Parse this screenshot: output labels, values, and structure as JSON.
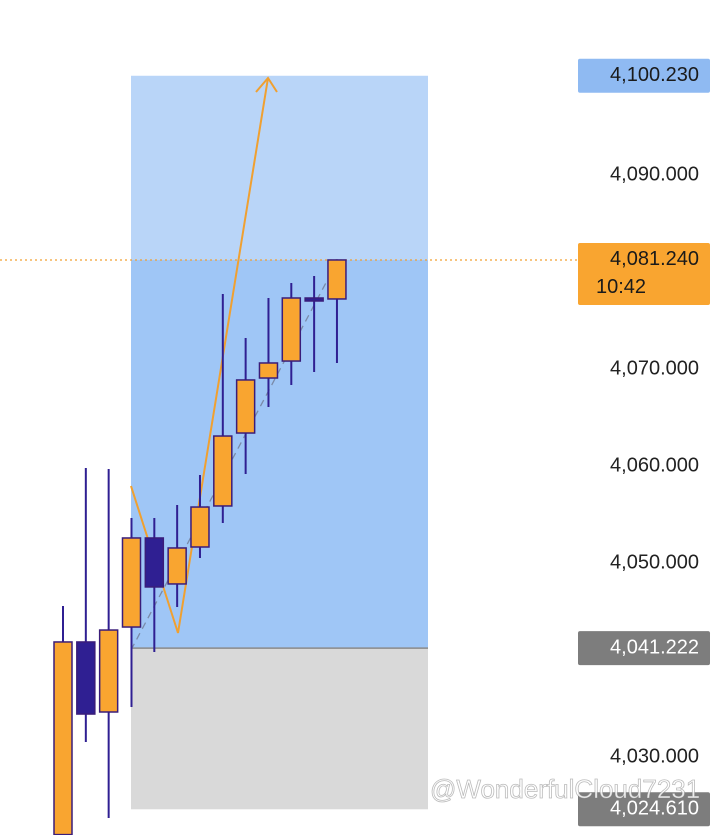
{
  "chart_data": {
    "type": "candlestick",
    "up_color": "#f9a530",
    "down_color": "#2f1f92",
    "border_color": "#3a1d7a",
    "open": [
      4022.0,
      4041.86,
      4034.64,
      4043.4,
      4052.58,
      4047.84,
      4051.65,
      4055.88,
      4063.4,
      4069.07,
      4070.82,
      4077.32,
      4077.22
    ],
    "high": [
      4045.57,
      4059.79,
      4059.69,
      4054.64,
      4054.64,
      4055.98,
      4059.07,
      4077.73,
      4073.2,
      4077.32,
      4078.87,
      4079.59,
      4081.3
    ],
    "low": [
      4021.0,
      4031.55,
      4023.71,
      4035.15,
      4040.82,
      4045.46,
      4050.52,
      4054.12,
      4059.18,
      4066.08,
      4068.35,
      4069.69,
      4070.62
    ],
    "close": [
      4041.86,
      4034.43,
      4043.09,
      4052.58,
      4047.53,
      4051.55,
      4055.77,
      4063.09,
      4068.87,
      4070.62,
      4077.32,
      4077.11,
      4081.24
    ],
    "ylim": [
      4021.96,
      4108.04
    ],
    "yticks": [
      {
        "value": 4090,
        "label": "4,090.000"
      },
      {
        "value": 4070,
        "label": "4,070.000"
      },
      {
        "value": 4060,
        "label": "4,060.000"
      },
      {
        "value": 4050,
        "label": "4,050.000"
      },
      {
        "value": 4030,
        "label": "4,030.000"
      }
    ],
    "position": {
      "target": {
        "value": 4100.23,
        "label": "4,100.230"
      },
      "entry": {
        "value": 4041.222,
        "label": "4,041.222"
      },
      "stop": {
        "value": 4024.61,
        "label": "4,024.610"
      }
    },
    "last_price": {
      "value": 4081.24,
      "label": "4,081.240"
    },
    "countdown": "10:42",
    "watermark": "@WonderfulCloud7231"
  }
}
